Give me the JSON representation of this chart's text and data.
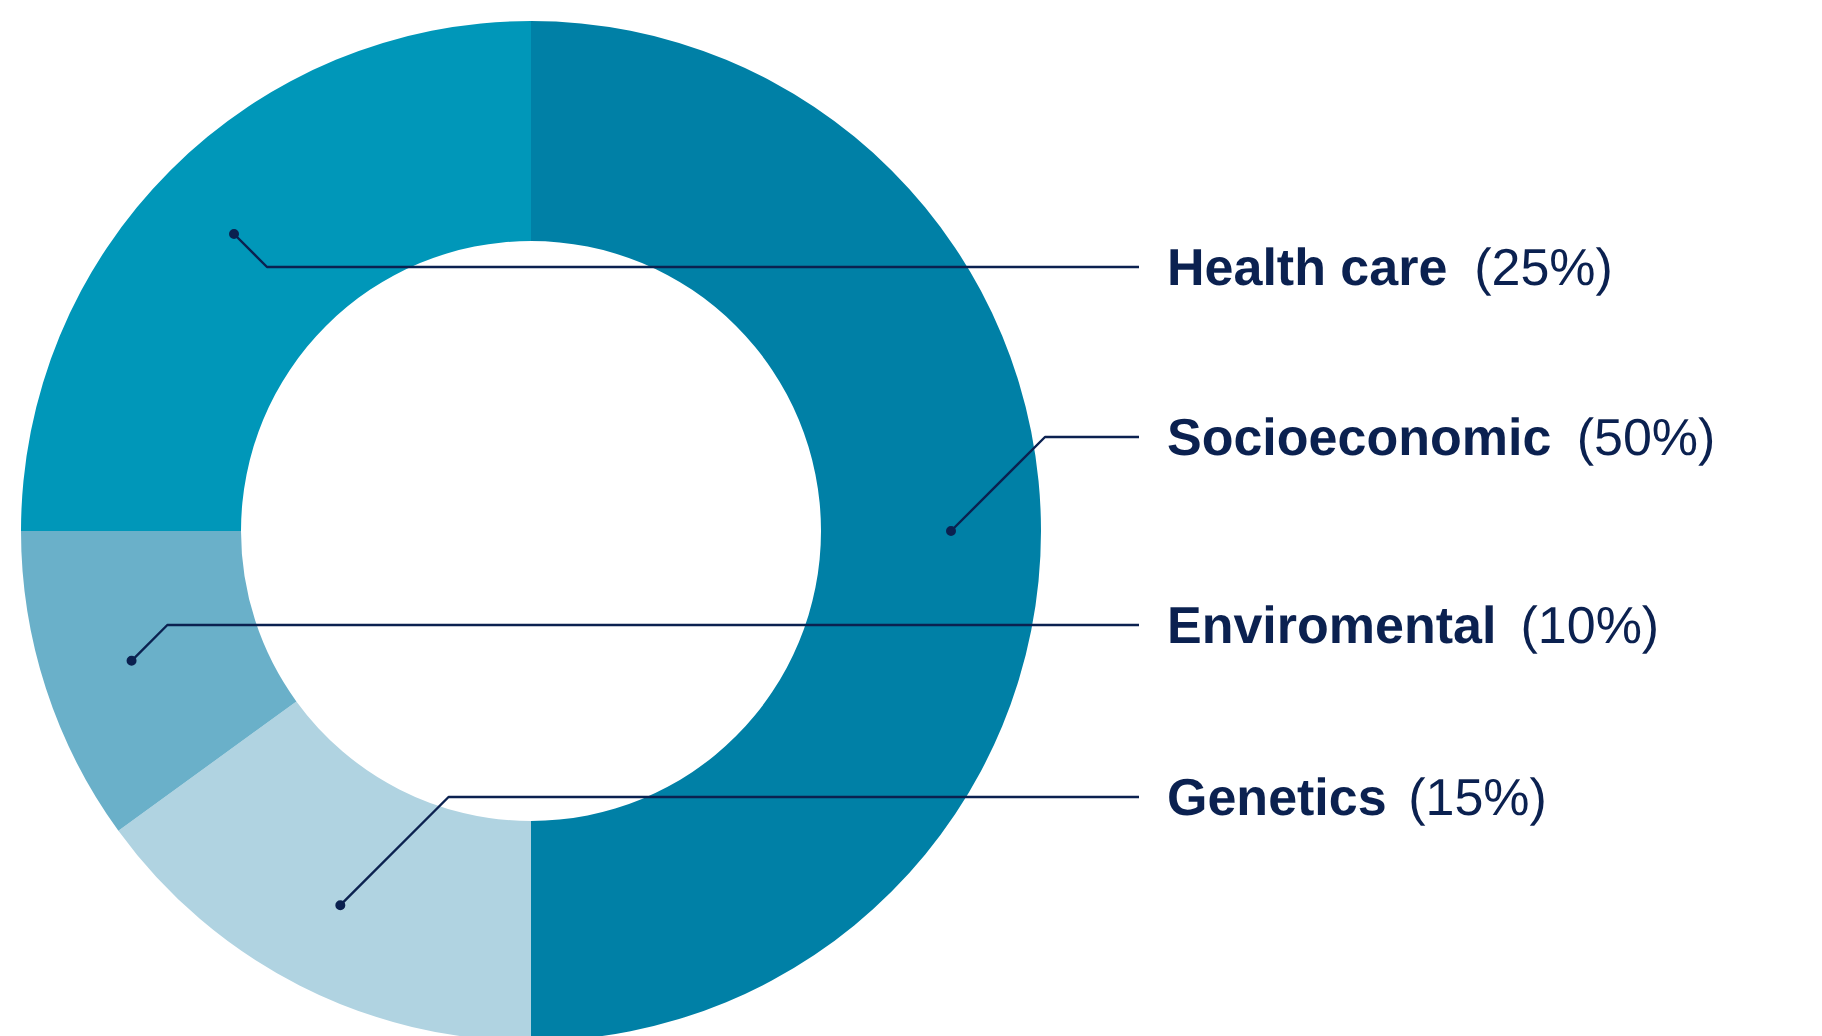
{
  "chart_data": {
    "type": "donut",
    "categories": [
      "Socioeconomic",
      "Genetics",
      "Enviromental",
      "Health care"
    ],
    "values": [
      50,
      15,
      10,
      25
    ],
    "value_labels": [
      "(50%)",
      "(15%)",
      "(10%)",
      "(25%)"
    ],
    "colors": [
      "#0080a6",
      "#b0d3e1",
      "#6ab0c9",
      "#0097b9"
    ]
  }
}
